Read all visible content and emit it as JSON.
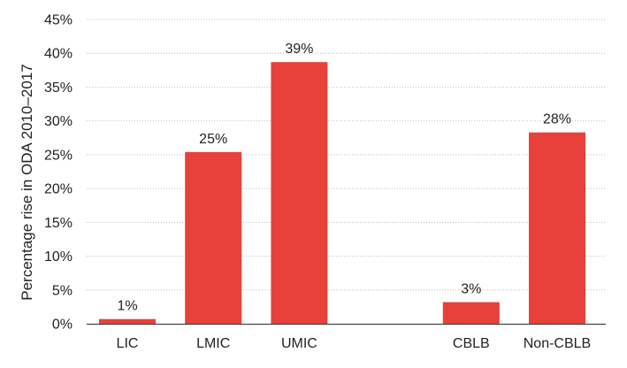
{
  "chart_data": {
    "type": "bar",
    "title": "",
    "xlabel": "",
    "ylabel": "Percentage rise in ODA 2010–2017",
    "ylim": [
      0,
      45
    ],
    "ytick_step": 5,
    "ytick_labels": [
      "0%",
      "5%",
      "10%",
      "15%",
      "20%",
      "25%",
      "30%",
      "35%",
      "40%",
      "45%"
    ],
    "grid": true,
    "bar_color": "#e8413a",
    "categories": [
      "LIC",
      "LMIC",
      "UMIC",
      "",
      "CBLB",
      "Non-CBLB"
    ],
    "values": [
      0.7,
      25.4,
      38.7,
      null,
      3.2,
      28.3
    ],
    "data_labels": [
      "1%",
      "25%",
      "39%",
      "",
      "3%",
      "28%"
    ]
  }
}
